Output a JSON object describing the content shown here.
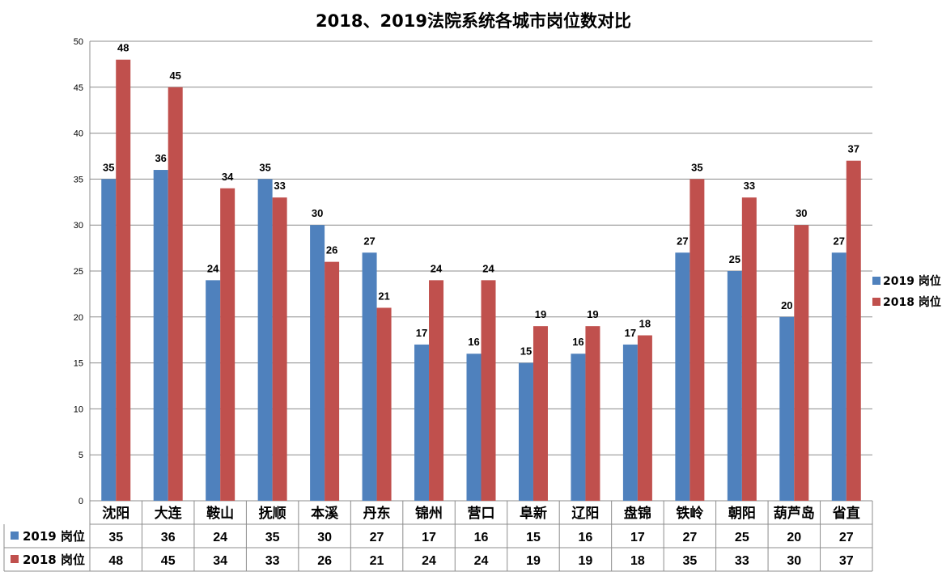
{
  "chart_data": {
    "type": "bar",
    "title": "2018、2019法院系统各城市岗位数对比",
    "categories": [
      "沈阳",
      "大连",
      "鞍山",
      "抚顺",
      "本溪",
      "丹东",
      "锦州",
      "营口",
      "阜新",
      "辽阳",
      "盘锦",
      "铁岭",
      "朝阳",
      "葫芦岛",
      "省直"
    ],
    "series": [
      {
        "name": "2019 岗位",
        "color": "#4F81BD",
        "values": [
          35,
          36,
          24,
          35,
          30,
          27,
          17,
          16,
          15,
          16,
          17,
          27,
          25,
          20,
          27
        ]
      },
      {
        "name": "2018 岗位",
        "color": "#C0504D",
        "values": [
          48,
          45,
          34,
          33,
          26,
          21,
          24,
          24,
          19,
          19,
          18,
          35,
          33,
          30,
          37
        ]
      }
    ],
    "ylim": [
      0,
      50
    ],
    "yticks": [
      0,
      5,
      10,
      15,
      20,
      25,
      30,
      35,
      40,
      45,
      50
    ],
    "grid": true,
    "legend": "right",
    "data_table": true,
    "data_labels": true
  }
}
